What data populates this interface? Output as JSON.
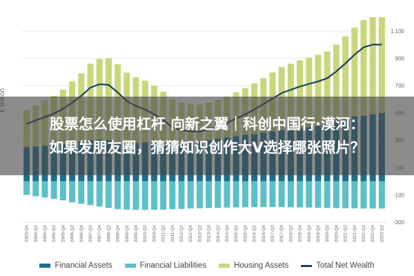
{
  "headline": {
    "line1": "股票怎么使用杠杆 向新之翼｜科创中国行·漠河：",
    "line2": "如果发朋友圈，猜猜知识创作大V选择哪张照片？"
  },
  "colors": {
    "financial_assets": "#1f6f8b",
    "financial_liabilities": "#5bc0c8",
    "housing_assets": "#c8d77a",
    "total_net_wealth": "#1d3f5e",
    "grid": "#e6e6e6",
    "tick": "#666666"
  },
  "chart_data": {
    "type": "bar",
    "ylabel": "€ Billion",
    "ylim": [
      -300,
      1200
    ],
    "yticks": [
      -300,
      -100,
      100,
      300,
      500,
      700,
      900,
      1100
    ],
    "ytick_labels": [
      "-300",
      "-100",
      "100",
      "300",
      "500",
      "700",
      "900",
      "1,100"
    ],
    "categories": [
      "2003-Q4",
      "2004-Q2",
      "2004-Q4",
      "2005-Q2",
      "2005-Q4",
      "2006-Q2",
      "2006-Q4",
      "2007-Q2",
      "2007-Q4",
      "2008-Q2",
      "2008-Q4",
      "2009-Q2",
      "2009-Q4",
      "2010-Q2",
      "2010-Q4",
      "2011-Q2",
      "2011-Q4",
      "2012-Q2",
      "2012-Q4",
      "2013-Q2",
      "2013-Q4",
      "2014-Q2",
      "2014-Q4",
      "2015-Q2",
      "2015-Q4",
      "2016-Q2",
      "2016-Q4",
      "2017-Q2",
      "2017-Q4",
      "2018-Q2",
      "2018-Q4",
      "2019-Q2",
      "2019-Q4",
      "2020-Q2",
      "2020-Q4",
      "2021-Q2",
      "2021-Q4",
      "2022-Q2",
      "2022-Q4",
      "2023-Q2"
    ],
    "series": [
      {
        "name": "Financial Assets",
        "kind": "bar",
        "values": [
          250,
          255,
          260,
          265,
          270,
          280,
          290,
          300,
          305,
          300,
          285,
          275,
          280,
          285,
          280,
          275,
          270,
          275,
          285,
          290,
          300,
          310,
          320,
          330,
          340,
          345,
          355,
          365,
          375,
          380,
          385,
          395,
          405,
          420,
          440,
          460,
          475,
          480,
          490,
          500
        ]
      },
      {
        "name": "Financial Liabilities",
        "kind": "bar",
        "values": [
          -100,
          -110,
          -120,
          -130,
          -140,
          -155,
          -165,
          -175,
          -185,
          -195,
          -205,
          -208,
          -210,
          -210,
          -210,
          -208,
          -205,
          -203,
          -200,
          -198,
          -196,
          -195,
          -193,
          -192,
          -191,
          -190,
          -190,
          -190,
          -190,
          -191,
          -192,
          -193,
          -195,
          -196,
          -197,
          -198,
          -199,
          -200,
          -200,
          -200
        ]
      },
      {
        "name": "Housing Assets",
        "kind": "bar",
        "values": [
          270,
          300,
          330,
          360,
          400,
          450,
          500,
          560,
          590,
          600,
          570,
          520,
          480,
          450,
          420,
          380,
          330,
          300,
          280,
          270,
          275,
          285,
          300,
          320,
          340,
          370,
          400,
          430,
          460,
          480,
          500,
          510,
          520,
          530,
          560,
          600,
          650,
          700,
          710,
          700
        ]
      },
      {
        "name": "Total Net Wealth",
        "kind": "line",
        "values": [
          420,
          445,
          470,
          495,
          530,
          575,
          625,
          685,
          710,
          705,
          650,
          587,
          550,
          525,
          490,
          447,
          395,
          372,
          365,
          362,
          379,
          400,
          427,
          458,
          489,
          525,
          565,
          605,
          645,
          669,
          693,
          712,
          730,
          754,
          803,
          862,
          926,
          980,
          1000,
          1000
        ]
      }
    ]
  }
}
